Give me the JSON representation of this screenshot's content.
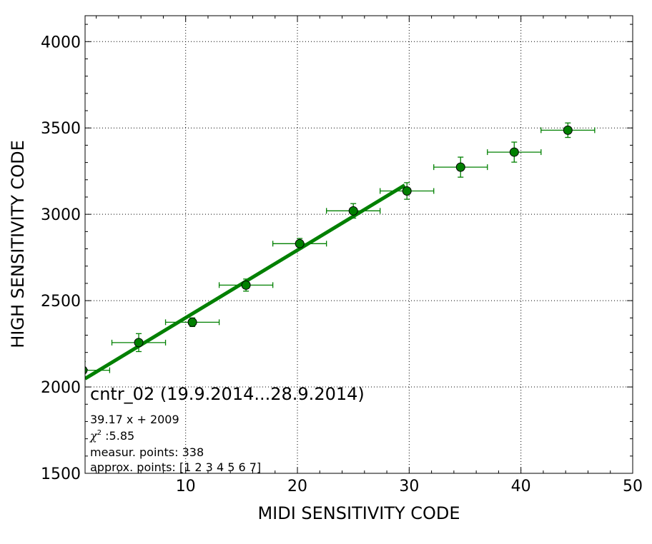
{
  "chart_data": {
    "type": "scatter",
    "xlabel": "MIDI SENSITIVITY CODE",
    "ylabel": "HIGH SENSITIVITY CODE",
    "xlim": [
      1,
      50
    ],
    "ylim": [
      1500,
      4150
    ],
    "xticks": [
      10,
      20,
      30,
      40,
      50
    ],
    "yticks": [
      1500,
      2000,
      2500,
      3000,
      3500,
      4000
    ],
    "grid": true,
    "series": [
      {
        "kind": "errorbar",
        "color": "#008000",
        "points": [
          {
            "x": 0.8,
            "y": 2097,
            "xerr": 2.4,
            "yerr": 50
          },
          {
            "x": 5.8,
            "y": 2257,
            "xerr": 2.4,
            "yerr": 52
          },
          {
            "x": 10.6,
            "y": 2375,
            "xerr": 2.4,
            "yerr": 25
          },
          {
            "x": 15.4,
            "y": 2590,
            "xerr": 2.4,
            "yerr": 35
          },
          {
            "x": 20.2,
            "y": 2830,
            "xerr": 2.4,
            "yerr": 30
          },
          {
            "x": 25.0,
            "y": 3020,
            "xerr": 2.4,
            "yerr": 42
          },
          {
            "x": 29.8,
            "y": 3135,
            "xerr": 2.4,
            "yerr": 48
          },
          {
            "x": 34.6,
            "y": 3273,
            "xerr": 2.4,
            "yerr": 58
          },
          {
            "x": 39.4,
            "y": 3360,
            "xerr": 2.4,
            "yerr": 58
          },
          {
            "x": 44.2,
            "y": 3487,
            "xerr": 2.4,
            "yerr": 42
          }
        ]
      },
      {
        "kind": "line",
        "color": "#008000",
        "slope": 39.17,
        "intercept": 2009,
        "x_range": [
          1,
          29.6
        ]
      }
    ],
    "annotations": {
      "title": "cntr_02 (19.9.2014...28.9.2014)",
      "equation": "39.17 x + 2009",
      "chi_symbol": "χ",
      "chi_exp": "2",
      "chi_value": " :5.85",
      "measur_points": "measur. points: 338",
      "approx_points": "approx. points: [1 2 3 4 5 6 7]"
    }
  }
}
